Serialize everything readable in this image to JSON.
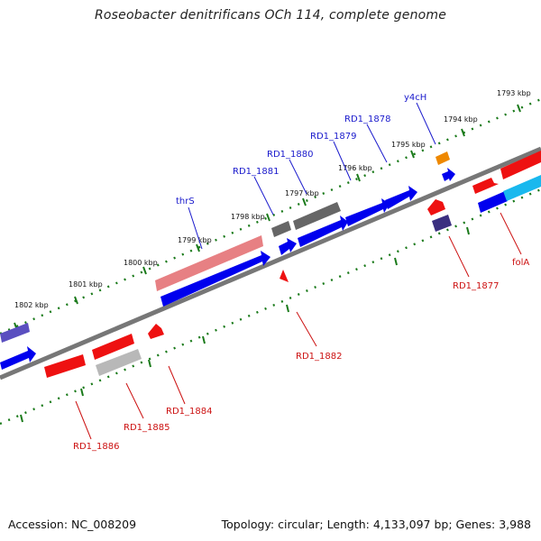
{
  "title": "Roseobacter denitrificans OCh 114, complete genome",
  "footer": {
    "accession": "Accession: NC_008209",
    "summary": "Topology: circular; Length: 4,133,097 bp; Genes: 3,988"
  },
  "scale_labels": [
    "1793 kbp",
    "1794 kbp",
    "1795 kbp",
    "1796 kbp",
    "1797 kbp",
    "1798 kbp",
    "1799 kbp",
    "1800 kbp",
    "1801 kbp",
    "1802 kbp"
  ],
  "top_labels": [
    "y4cH",
    "RD1_1878",
    "RD1_1879",
    "RD1_1880",
    "RD1_1881",
    "thrS"
  ],
  "bottom_labels": [
    "RD1_1877",
    "folA",
    "RD1_1882",
    "RD1_1884",
    "RD1_1885",
    "RD1_1886"
  ],
  "colors": {
    "forward_gene": "#0000ee",
    "reverse_gene": "#ee0000",
    "top_label": "#1a1acc",
    "bottom_label": "#cc1111",
    "backbone": "#777777",
    "tick": "#1a7a1a"
  }
}
